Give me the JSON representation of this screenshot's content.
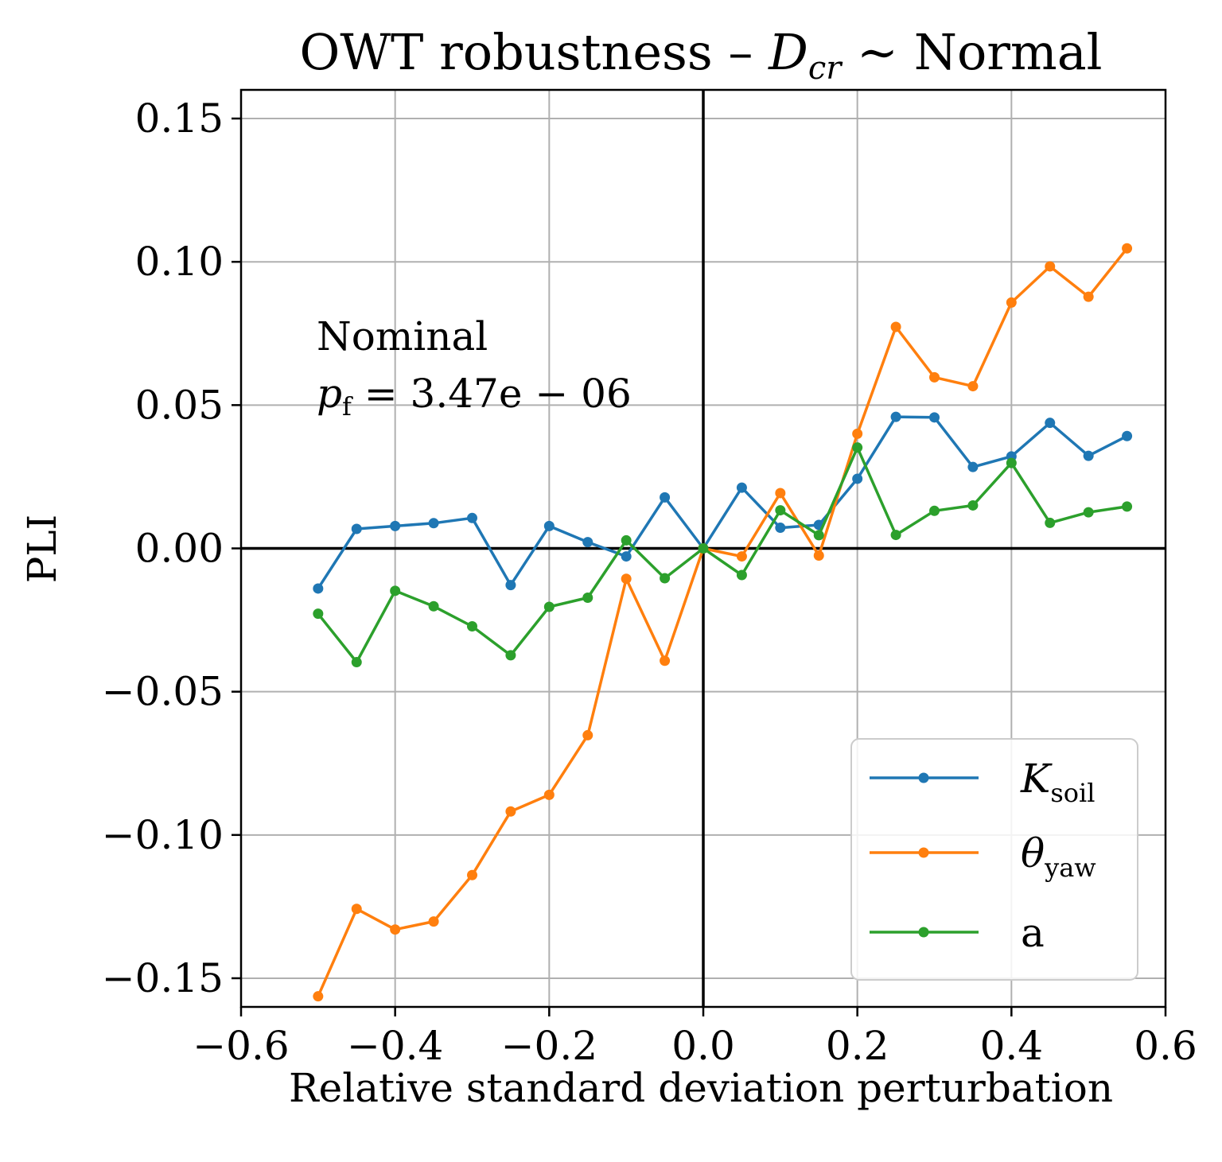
{
  "chart_data": {
    "type": "line",
    "title": {
      "prefix": "OWT robustness – ",
      "var": "D",
      "sub": "cr",
      "suffix": " ∼ Normal"
    },
    "xlabel": "Relative standard deviation perturbation",
    "ylabel": "PLI",
    "xlim": [
      -0.6,
      0.6
    ],
    "ylim": [
      -0.16,
      0.16
    ],
    "xticks": [
      -0.6,
      -0.4,
      -0.2,
      0.0,
      0.2,
      0.4,
      0.6
    ],
    "xtick_labels": [
      "−0.6",
      "−0.4",
      "−0.2",
      "0.0",
      "0.2",
      "0.4",
      "0.6"
    ],
    "yticks": [
      -0.15,
      -0.1,
      -0.05,
      0.0,
      0.05,
      0.1,
      0.15
    ],
    "ytick_labels": [
      "−0.15",
      "−0.10",
      "−0.05",
      "0.00",
      "0.05",
      "0.10",
      "0.15"
    ],
    "grid": true,
    "legend_position": "lower-right",
    "annotation": {
      "line1": "Nominal",
      "var": "p",
      "sub": "f",
      "rest": " = 3.47e − 06"
    },
    "x": [
      -0.5,
      -0.45,
      -0.4,
      -0.35,
      -0.3,
      -0.25,
      -0.2,
      -0.15,
      -0.1,
      -0.05,
      0.0,
      0.05,
      0.1,
      0.15,
      0.2,
      0.25,
      0.3,
      0.35,
      0.4,
      0.45,
      0.5,
      0.55
    ],
    "series": [
      {
        "name": "K_soil",
        "label_main": "K",
        "label_sub": "soil",
        "color": "#1f77b4",
        "values": [
          -0.014,
          0.0068,
          0.0078,
          0.0088,
          0.0106,
          -0.0128,
          0.0078,
          0.0022,
          -0.0028,
          0.0178,
          0.0,
          0.0212,
          0.0072,
          0.0082,
          0.0243,
          0.0459,
          0.0457,
          0.0284,
          0.0321,
          0.0438,
          0.0323,
          0.0392
        ]
      },
      {
        "name": "theta_yaw",
        "label_main": "θ",
        "label_sub": "yaw",
        "color": "#ff7f0e",
        "values": [
          -0.1563,
          -0.1258,
          -0.133,
          -0.1302,
          -0.114,
          -0.0918,
          -0.086,
          -0.0652,
          -0.0106,
          -0.0392,
          0.0,
          -0.0028,
          0.0193,
          -0.0025,
          0.04,
          0.0773,
          0.0597,
          0.0566,
          0.0858,
          0.0984,
          0.0878,
          0.1047
        ]
      },
      {
        "name": "a",
        "label_main": "a",
        "label_sub": "",
        "color": "#2ca02c",
        "values": [
          -0.0228,
          -0.0397,
          -0.0148,
          -0.0202,
          -0.0272,
          -0.0373,
          -0.0204,
          -0.0172,
          0.0028,
          -0.0104,
          0.0,
          -0.0093,
          0.0133,
          0.0046,
          0.0352,
          0.0047,
          0.0131,
          0.015,
          0.0298,
          0.0089,
          0.0126,
          0.0146
        ]
      }
    ]
  }
}
